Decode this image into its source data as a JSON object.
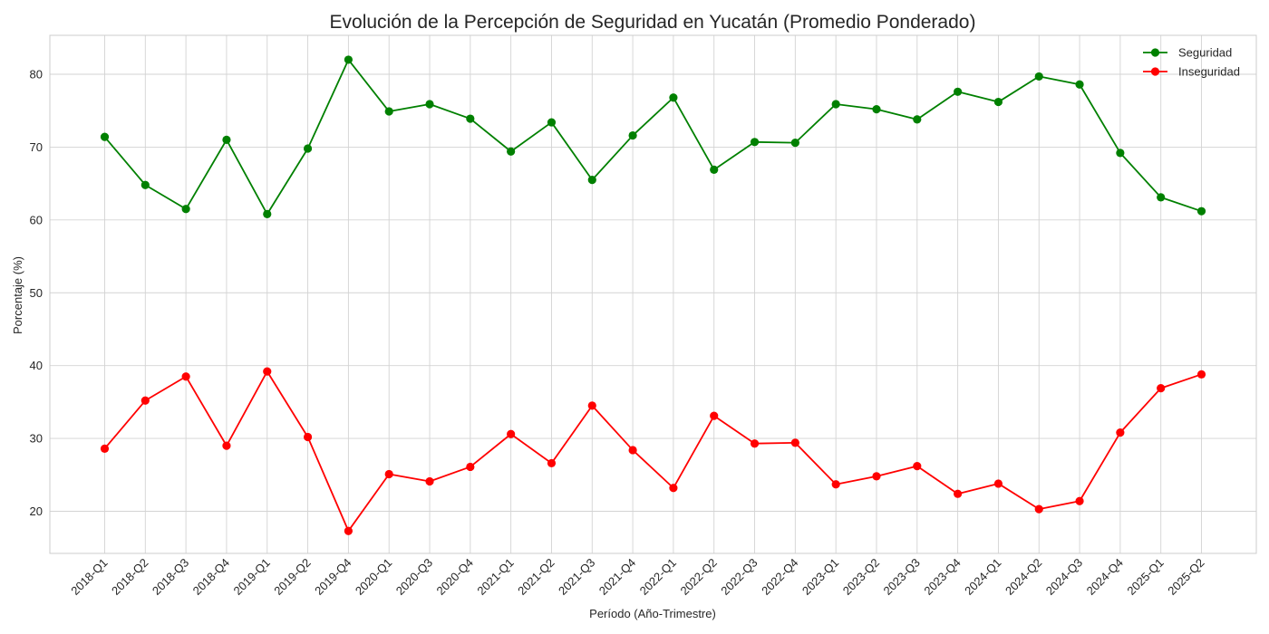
{
  "chart_data": {
    "type": "line",
    "title": "Evolución de la Percepción de Seguridad en Yucatán (Promedio Ponderado)",
    "xlabel": "Período (Año-Trimestre)",
    "ylabel": "Porcentaje (%)",
    "ylim": [
      14.2,
      85.3
    ],
    "yticks": [
      20,
      30,
      40,
      50,
      60,
      70,
      80
    ],
    "grid": true,
    "legend_position": "top-right",
    "categories": [
      "2018-Q1",
      "2018-Q2",
      "2018-Q3",
      "2018-Q4",
      "2019-Q1",
      "2019-Q2",
      "2019-Q4",
      "2020-Q1",
      "2020-Q3",
      "2020-Q4",
      "2021-Q1",
      "2021-Q2",
      "2021-Q3",
      "2021-Q4",
      "2022-Q1",
      "2022-Q2",
      "2022-Q3",
      "2022-Q4",
      "2023-Q1",
      "2023-Q2",
      "2023-Q3",
      "2023-Q4",
      "2024-Q1",
      "2024-Q2",
      "2024-Q3",
      "2024-Q4",
      "2025-Q1",
      "2025-Q2"
    ],
    "series": [
      {
        "name": "Seguridad",
        "color": "#008000",
        "values": [
          71.4,
          64.8,
          61.5,
          71.0,
          60.8,
          69.8,
          82.0,
          74.9,
          75.9,
          73.9,
          69.4,
          73.4,
          65.5,
          71.6,
          76.8,
          66.9,
          70.7,
          70.6,
          75.9,
          75.2,
          73.8,
          77.6,
          76.2,
          79.7,
          78.6,
          69.2,
          63.1,
          61.2
        ]
      },
      {
        "name": "Inseguridad",
        "color": "#ff0000",
        "values": [
          28.6,
          35.2,
          38.5,
          29.0,
          39.2,
          30.2,
          17.3,
          25.1,
          24.1,
          26.1,
          30.6,
          26.6,
          34.5,
          28.4,
          23.2,
          33.1,
          29.3,
          29.4,
          23.7,
          24.8,
          26.2,
          22.4,
          23.8,
          20.3,
          21.4,
          30.8,
          36.9,
          38.8
        ]
      }
    ]
  }
}
